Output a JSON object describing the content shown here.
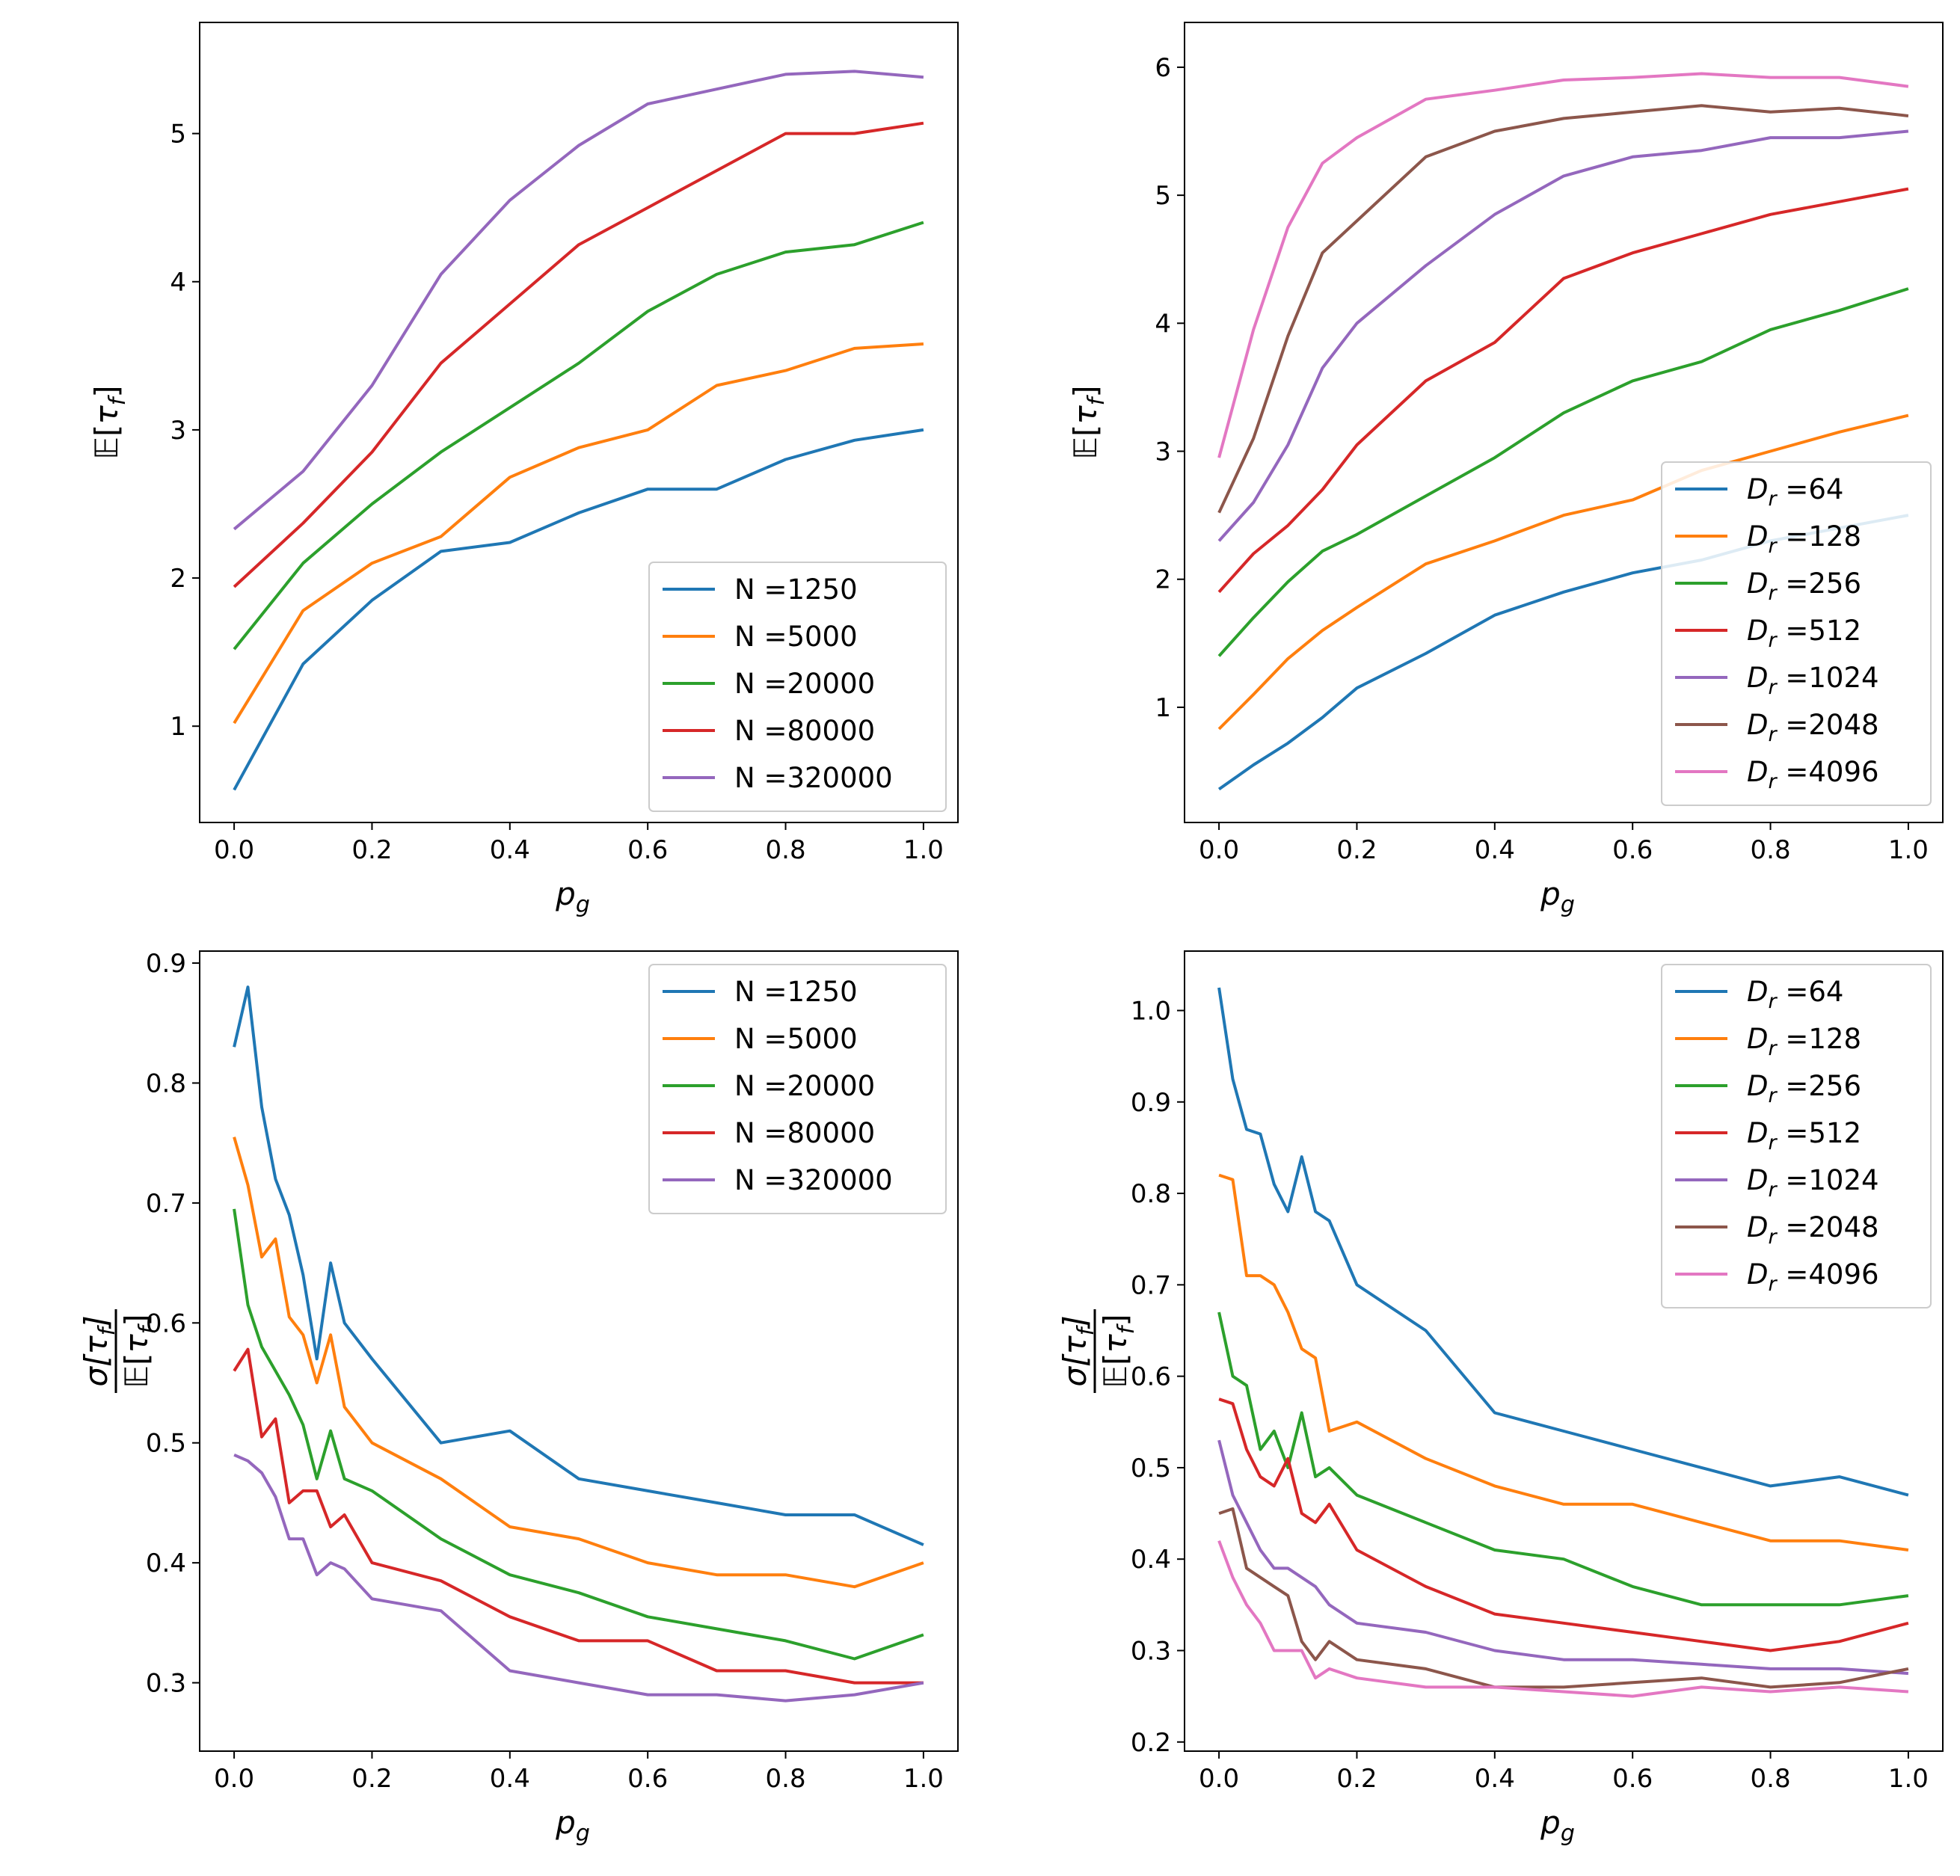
{
  "colors": {
    "series": [
      "#1f77b4",
      "#ff7f0e",
      "#2ca02c",
      "#d62728",
      "#9467bd",
      "#8c564b",
      "#e377c2"
    ],
    "axes": "#000000",
    "legend_border": "#cccccc",
    "background": "#ffffff"
  },
  "chart_data": [
    {
      "type": "line",
      "panel": "top-left",
      "xlabel": "p_g",
      "ylabel": "E[τ_f]",
      "xlim": [
        -0.05,
        1.05
      ],
      "ylim": [
        0.35,
        5.75
      ],
      "xticks": [
        "0.0",
        "0.2",
        "0.4",
        "0.6",
        "0.8",
        "1.0"
      ],
      "xtick_values": [
        0,
        0.2,
        0.4,
        0.6,
        0.8,
        1.0
      ],
      "yticks": [
        "1",
        "2",
        "3",
        "4",
        "5"
      ],
      "ytick_values": [
        1,
        2,
        3,
        4,
        5
      ],
      "legend_loc": "lower-right",
      "x": [
        0,
        0.1,
        0.2,
        0.3,
        0.4,
        0.5,
        0.6,
        0.7,
        0.8,
        0.9,
        1.0
      ],
      "series": [
        {
          "name": "N =1250",
          "label_prefix": "N =",
          "label_value": "1250",
          "values": [
            0.57,
            1.42,
            1.85,
            2.18,
            2.24,
            2.44,
            2.6,
            2.6,
            2.8,
            2.93,
            3.0
          ]
        },
        {
          "name": "N =5000",
          "label_prefix": "N =",
          "label_value": "5000",
          "values": [
            1.02,
            1.78,
            2.1,
            2.28,
            2.68,
            2.88,
            3.0,
            3.3,
            3.4,
            3.55,
            3.58
          ]
        },
        {
          "name": "N =20000",
          "label_prefix": "N =",
          "label_value": "20000",
          "values": [
            1.52,
            2.1,
            2.5,
            2.85,
            3.15,
            3.45,
            3.8,
            4.05,
            4.2,
            4.25,
            4.4
          ]
        },
        {
          "name": "N =80000",
          "label_prefix": "N =",
          "label_value": "80000",
          "values": [
            1.94,
            2.37,
            2.85,
            3.45,
            3.85,
            4.25,
            4.5,
            4.75,
            5.0,
            5.0,
            5.07
          ]
        },
        {
          "name": "N =320000",
          "label_prefix": "N =",
          "label_value": "320000",
          "values": [
            2.33,
            2.72,
            3.3,
            4.05,
            4.55,
            4.92,
            5.2,
            5.3,
            5.4,
            5.42,
            5.38
          ]
        }
      ]
    },
    {
      "type": "line",
      "panel": "top-right",
      "xlabel": "p_g",
      "ylabel": "E[τ_f]",
      "xlim": [
        -0.05,
        1.05
      ],
      "ylim": [
        0.1,
        6.35
      ],
      "xticks": [
        "0.0",
        "0.2",
        "0.4",
        "0.6",
        "0.8",
        "1.0"
      ],
      "xtick_values": [
        0,
        0.2,
        0.4,
        0.6,
        0.8,
        1.0
      ],
      "yticks": [
        "1",
        "2",
        "3",
        "4",
        "5",
        "6"
      ],
      "ytick_values": [
        1,
        2,
        3,
        4,
        5,
        6
      ],
      "legend_loc": "center-right",
      "x": [
        0,
        0.05,
        0.1,
        0.15,
        0.2,
        0.3,
        0.4,
        0.5,
        0.6,
        0.7,
        0.8,
        0.9,
        1.0
      ],
      "series": [
        {
          "name": "D_r =64",
          "label_prefix": "D",
          "label_sub": "r",
          "label_value": " =64",
          "values": [
            0.36,
            0.55,
            0.72,
            0.92,
            1.15,
            1.42,
            1.72,
            1.9,
            2.05,
            2.15,
            2.3,
            2.4,
            2.5
          ]
        },
        {
          "name": "D_r =128",
          "label_prefix": "D",
          "label_sub": "r",
          "label_value": " =128",
          "values": [
            0.83,
            1.1,
            1.38,
            1.6,
            1.78,
            2.12,
            2.3,
            2.5,
            2.62,
            2.85,
            3.0,
            3.15,
            3.28
          ]
        },
        {
          "name": "D_r =256",
          "label_prefix": "D",
          "label_sub": "r",
          "label_value": " =256",
          "values": [
            1.4,
            1.7,
            1.98,
            2.22,
            2.35,
            2.65,
            2.95,
            3.3,
            3.55,
            3.7,
            3.95,
            4.1,
            4.27
          ]
        },
        {
          "name": "D_r =512",
          "label_prefix": "D",
          "label_sub": "r",
          "label_value": " =512",
          "values": [
            1.9,
            2.2,
            2.42,
            2.7,
            3.05,
            3.55,
            3.85,
            4.35,
            4.55,
            4.7,
            4.85,
            4.95,
            5.05
          ]
        },
        {
          "name": "D_r =1024",
          "label_prefix": "D",
          "label_sub": "r",
          "label_value": " =1024",
          "values": [
            2.3,
            2.6,
            3.05,
            3.65,
            4.0,
            4.45,
            4.85,
            5.15,
            5.3,
            5.35,
            5.45,
            5.45,
            5.5
          ]
        },
        {
          "name": "D_r =2048",
          "label_prefix": "D",
          "label_sub": "r",
          "label_value": " =2048",
          "values": [
            2.52,
            3.1,
            3.9,
            4.55,
            4.8,
            5.3,
            5.5,
            5.6,
            5.65,
            5.7,
            5.65,
            5.68,
            5.62
          ]
        },
        {
          "name": "D_r =4096",
          "label_prefix": "D",
          "label_sub": "r",
          "label_value": " =4096",
          "values": [
            2.95,
            3.95,
            4.75,
            5.25,
            5.45,
            5.75,
            5.82,
            5.9,
            5.92,
            5.95,
            5.92,
            5.92,
            5.85
          ]
        }
      ]
    },
    {
      "type": "line",
      "panel": "bottom-left",
      "xlabel": "p_g",
      "ylabel": "σ[τ_f] / E[τ_f]",
      "xlim": [
        -0.05,
        1.05
      ],
      "ylim": [
        0.243,
        0.91
      ],
      "xticks": [
        "0.0",
        "0.2",
        "0.4",
        "0.6",
        "0.8",
        "1.0"
      ],
      "xtick_values": [
        0,
        0.2,
        0.4,
        0.6,
        0.8,
        1.0
      ],
      "yticks": [
        "0.3",
        "0.4",
        "0.5",
        "0.6",
        "0.7",
        "0.8",
        "0.9"
      ],
      "ytick_values": [
        0.3,
        0.4,
        0.5,
        0.6,
        0.7,
        0.8,
        0.9
      ],
      "legend_loc": "upper-right",
      "x": [
        0,
        0.02,
        0.04,
        0.06,
        0.08,
        0.1,
        0.12,
        0.14,
        0.16,
        0.2,
        0.3,
        0.4,
        0.5,
        0.6,
        0.7,
        0.8,
        0.9,
        1.0
      ],
      "series": [
        {
          "name": "N =1250",
          "label_prefix": "N =",
          "label_value": "1250",
          "values": [
            0.83,
            0.88,
            0.78,
            0.72,
            0.69,
            0.64,
            0.57,
            0.65,
            0.6,
            0.57,
            0.5,
            0.51,
            0.47,
            0.46,
            0.45,
            0.44,
            0.44,
            0.415
          ]
        },
        {
          "name": "N =5000",
          "label_prefix": "N =",
          "label_value": "5000",
          "values": [
            0.755,
            0.715,
            0.655,
            0.67,
            0.605,
            0.59,
            0.55,
            0.59,
            0.53,
            0.5,
            0.47,
            0.43,
            0.42,
            0.4,
            0.39,
            0.39,
            0.38,
            0.4
          ]
        },
        {
          "name": "N =20000",
          "label_prefix": "N =",
          "label_value": "20000",
          "values": [
            0.695,
            0.615,
            0.58,
            0.56,
            0.54,
            0.515,
            0.47,
            0.51,
            0.47,
            0.46,
            0.42,
            0.39,
            0.375,
            0.355,
            0.345,
            0.335,
            0.32,
            0.34
          ]
        },
        {
          "name": "N =80000",
          "label_prefix": "N =",
          "label_value": "80000",
          "values": [
            0.56,
            0.578,
            0.505,
            0.52,
            0.45,
            0.46,
            0.46,
            0.43,
            0.44,
            0.4,
            0.385,
            0.355,
            0.335,
            0.335,
            0.31,
            0.31,
            0.3,
            0.3
          ]
        },
        {
          "name": "N =320000",
          "label_prefix": "N =",
          "label_value": "320000",
          "values": [
            0.49,
            0.485,
            0.475,
            0.455,
            0.42,
            0.42,
            0.39,
            0.4,
            0.395,
            0.37,
            0.36,
            0.31,
            0.3,
            0.29,
            0.29,
            0.285,
            0.29,
            0.3
          ]
        }
      ]
    },
    {
      "type": "line",
      "panel": "bottom-right",
      "xlabel": "p_g",
      "ylabel": "σ[τ_f] / E[τ_f]",
      "xlim": [
        -0.05,
        1.05
      ],
      "ylim": [
        0.19,
        1.065
      ],
      "xticks": [
        "0.0",
        "0.2",
        "0.4",
        "0.6",
        "0.8",
        "1.0"
      ],
      "xtick_values": [
        0,
        0.2,
        0.4,
        0.6,
        0.8,
        1.0
      ],
      "yticks": [
        "0.2",
        "0.3",
        "0.4",
        "0.5",
        "0.6",
        "0.7",
        "0.8",
        "0.9",
        "1.0"
      ],
      "ytick_values": [
        0.2,
        0.3,
        0.4,
        0.5,
        0.6,
        0.7,
        0.8,
        0.9,
        1.0
      ],
      "legend_loc": "upper-right",
      "x": [
        0,
        0.02,
        0.04,
        0.06,
        0.08,
        0.1,
        0.12,
        0.14,
        0.16,
        0.2,
        0.3,
        0.4,
        0.5,
        0.6,
        0.7,
        0.8,
        0.9,
        1.0
      ],
      "series": [
        {
          "name": "D_r =64",
          "label_prefix": "D",
          "label_sub": "r",
          "label_value": " =64",
          "values": [
            1.025,
            0.925,
            0.87,
            0.865,
            0.81,
            0.78,
            0.84,
            0.78,
            0.77,
            0.7,
            0.65,
            0.56,
            0.54,
            0.52,
            0.5,
            0.48,
            0.49,
            0.47
          ]
        },
        {
          "name": "D_r =128",
          "label_prefix": "D",
          "label_sub": "r",
          "label_value": " =128",
          "values": [
            0.82,
            0.815,
            0.71,
            0.71,
            0.7,
            0.67,
            0.63,
            0.62,
            0.54,
            0.55,
            0.51,
            0.48,
            0.46,
            0.46,
            0.44,
            0.42,
            0.42,
            0.41
          ]
        },
        {
          "name": "D_r =256",
          "label_prefix": "D",
          "label_sub": "r",
          "label_value": " =256",
          "values": [
            0.67,
            0.6,
            0.59,
            0.52,
            0.54,
            0.5,
            0.56,
            0.49,
            0.5,
            0.47,
            0.44,
            0.41,
            0.4,
            0.37,
            0.35,
            0.35,
            0.35,
            0.36
          ]
        },
        {
          "name": "D_r =512",
          "label_prefix": "D",
          "label_sub": "r",
          "label_value": " =512",
          "values": [
            0.575,
            0.57,
            0.52,
            0.49,
            0.48,
            0.51,
            0.45,
            0.44,
            0.46,
            0.41,
            0.37,
            0.34,
            0.33,
            0.32,
            0.31,
            0.3,
            0.31,
            0.33
          ]
        },
        {
          "name": "D_r =1024",
          "label_prefix": "D",
          "label_sub": "r",
          "label_value": " =1024",
          "values": [
            0.53,
            0.47,
            0.44,
            0.41,
            0.39,
            0.39,
            0.38,
            0.37,
            0.35,
            0.33,
            0.32,
            0.3,
            0.29,
            0.29,
            0.285,
            0.28,
            0.28,
            0.275
          ]
        },
        {
          "name": "D_r =2048",
          "label_prefix": "D",
          "label_sub": "r",
          "label_value": " =2048",
          "values": [
            0.45,
            0.455,
            0.39,
            0.38,
            0.37,
            0.36,
            0.31,
            0.29,
            0.31,
            0.29,
            0.28,
            0.26,
            0.26,
            0.265,
            0.27,
            0.26,
            0.265,
            0.28
          ]
        },
        {
          "name": "D_r =4096",
          "label_prefix": "D",
          "label_sub": "r",
          "label_value": " =4096",
          "values": [
            0.42,
            0.38,
            0.35,
            0.33,
            0.3,
            0.3,
            0.3,
            0.27,
            0.28,
            0.27,
            0.26,
            0.26,
            0.255,
            0.25,
            0.26,
            0.255,
            0.26,
            0.255
          ]
        }
      ]
    }
  ]
}
